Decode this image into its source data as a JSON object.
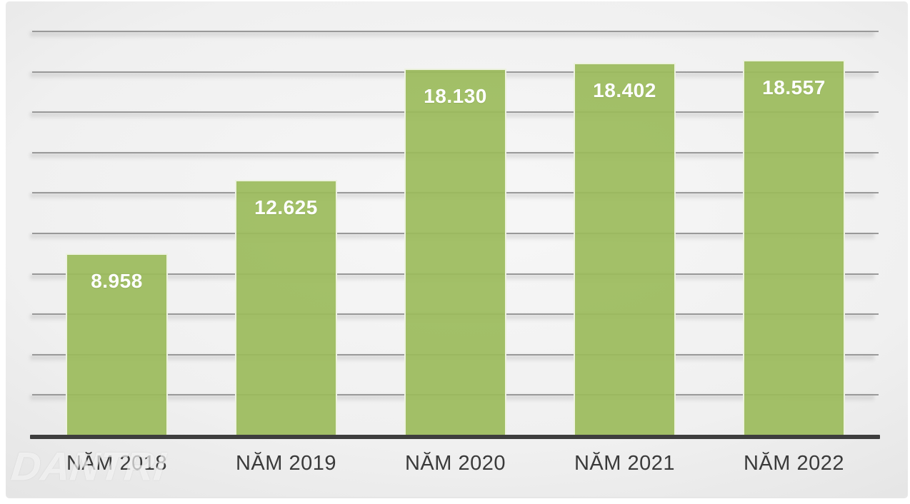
{
  "chart_data": {
    "type": "bar",
    "categories": [
      "NĂM 2018",
      "NĂM 2019",
      "NĂM 2020",
      "NĂM 2021",
      "NĂM 2022"
    ],
    "values": [
      8958,
      12625,
      18130,
      18402,
      18557
    ],
    "value_labels": [
      "8.958",
      "12.625",
      "18.130",
      "18.402",
      "18.557"
    ],
    "title": "",
    "xlabel": "",
    "ylabel": "",
    "ylim": [
      0,
      20000
    ],
    "grid_step": 2000,
    "grid": true,
    "legend": false,
    "value_label_position": "inside-top",
    "bar_color": "#9dbc62"
  },
  "watermark": {
    "text": "DANTRI"
  },
  "colors": {
    "bar_fill": "rgba(155,187,91,0.92)",
    "bar_border": "#edf2e0",
    "grid_line": "#9b9b9b",
    "axis_line": "#3e3e3e",
    "x_label": "#3a3a3a",
    "value_label": "#ffffff",
    "panel_light": "#f7f7f7",
    "panel_dark": "#c7c7c7",
    "watermark": "rgba(255,255,255,0.62)"
  }
}
